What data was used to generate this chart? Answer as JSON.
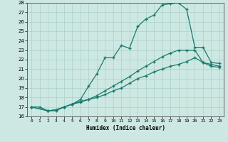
{
  "xlabel": "Humidex (Indice chaleur)",
  "xlim": [
    -0.5,
    23.5
  ],
  "ylim": [
    16,
    28
  ],
  "xticks": [
    0,
    1,
    2,
    3,
    4,
    5,
    6,
    7,
    8,
    9,
    10,
    11,
    12,
    13,
    14,
    15,
    16,
    17,
    18,
    19,
    20,
    21,
    22,
    23
  ],
  "yticks": [
    16,
    17,
    18,
    19,
    20,
    21,
    22,
    23,
    24,
    25,
    26,
    27,
    28
  ],
  "background_color": "#cde8e2",
  "grid_color": "#aad0c8",
  "line_color": "#1a7a6e",
  "curve1_x": [
    0,
    1,
    2,
    3,
    4,
    5,
    6,
    7,
    8,
    9,
    10,
    11,
    12,
    13,
    14,
    15,
    16,
    17,
    18,
    19,
    20,
    21,
    22,
    23
  ],
  "curve1_y": [
    17.0,
    17.0,
    16.6,
    16.6,
    17.0,
    17.3,
    17.8,
    19.2,
    20.5,
    22.2,
    22.2,
    23.5,
    23.2,
    25.5,
    26.3,
    26.7,
    27.8,
    27.9,
    28.0,
    27.3,
    23.3,
    23.3,
    21.7,
    21.6
  ],
  "curve2_x": [
    0,
    2,
    3,
    4,
    5,
    6,
    7,
    8,
    9,
    10,
    11,
    12,
    13,
    14,
    15,
    16,
    17,
    18,
    19,
    20,
    21,
    22,
    23
  ],
  "curve2_y": [
    17.0,
    16.6,
    16.7,
    17.0,
    17.3,
    17.6,
    17.8,
    18.2,
    18.7,
    19.2,
    19.7,
    20.2,
    20.8,
    21.3,
    21.8,
    22.3,
    22.7,
    23.0,
    23.0,
    23.0,
    21.7,
    21.5,
    21.3
  ],
  "curve3_x": [
    0,
    2,
    3,
    4,
    5,
    6,
    7,
    8,
    9,
    10,
    11,
    12,
    13,
    14,
    15,
    16,
    17,
    18,
    19,
    20,
    21,
    22,
    23
  ],
  "curve3_y": [
    17.0,
    16.6,
    16.7,
    17.0,
    17.3,
    17.5,
    17.8,
    18.0,
    18.3,
    18.7,
    19.0,
    19.5,
    20.0,
    20.3,
    20.7,
    21.0,
    21.3,
    21.5,
    21.8,
    22.2,
    21.7,
    21.3,
    21.2
  ]
}
